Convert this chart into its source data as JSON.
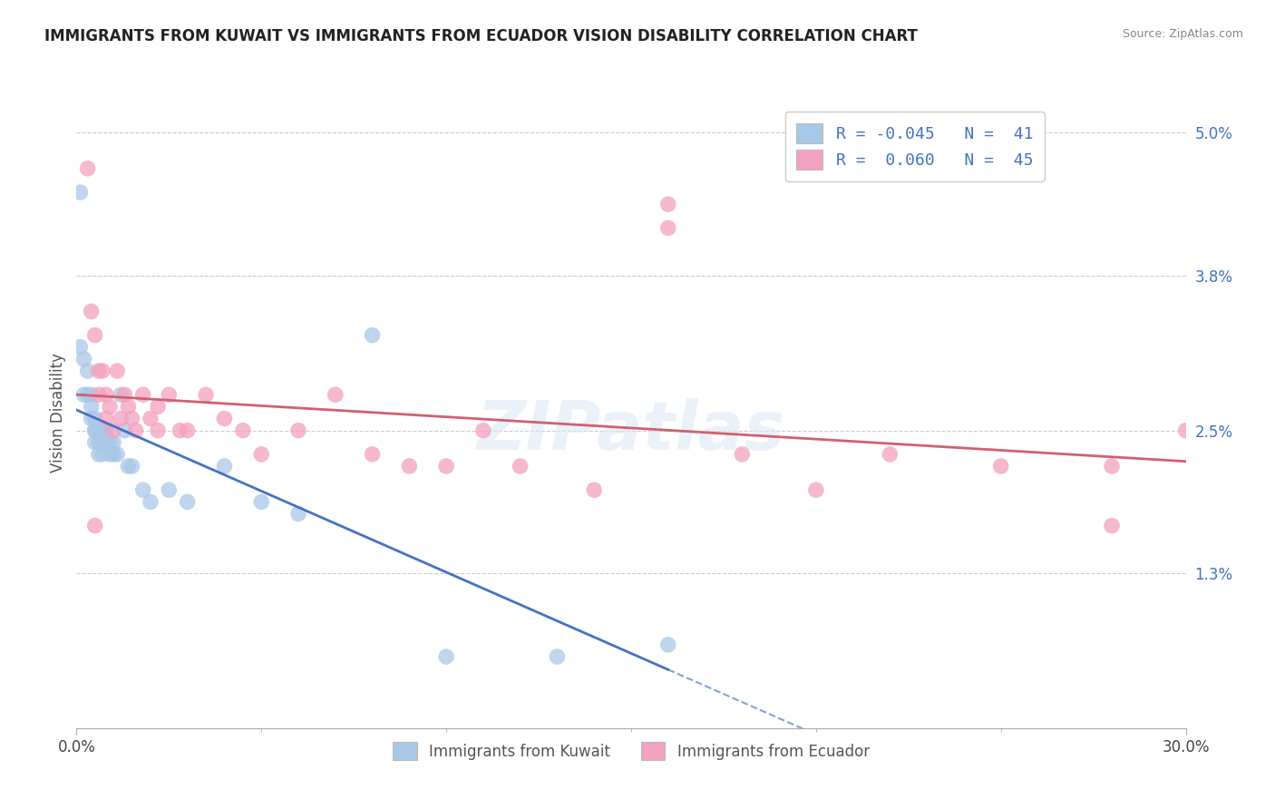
{
  "title": "IMMIGRANTS FROM KUWAIT VS IMMIGRANTS FROM ECUADOR VISION DISABILITY CORRELATION CHART",
  "source": "Source: ZipAtlas.com",
  "ylabel": "Vision Disability",
  "xlim": [
    0.0,
    0.3
  ],
  "ylim": [
    0.0,
    0.053
  ],
  "ytick_values": [
    0.013,
    0.025,
    0.038,
    0.05
  ],
  "ytick_labels": [
    "1.3%",
    "2.5%",
    "3.8%",
    "5.0%"
  ],
  "xtick_values": [
    0.0,
    0.3
  ],
  "xtick_labels": [
    "0.0%",
    "30.0%"
  ],
  "color_kuwait": "#a8c8e8",
  "color_ecuador": "#f4a0c0",
  "color_kuwait_line": "#4472c4",
  "color_ecuador_line": "#d06070",
  "watermark": "ZIPatlas",
  "kuwait_x": [
    0.001,
    0.001,
    0.002,
    0.002,
    0.003,
    0.003,
    0.004,
    0.004,
    0.004,
    0.005,
    0.005,
    0.005,
    0.005,
    0.006,
    0.006,
    0.006,
    0.007,
    0.007,
    0.007,
    0.008,
    0.008,
    0.009,
    0.009,
    0.01,
    0.01,
    0.011,
    0.012,
    0.013,
    0.014,
    0.015,
    0.018,
    0.02,
    0.025,
    0.03,
    0.04,
    0.05,
    0.06,
    0.08,
    0.1,
    0.13,
    0.16
  ],
  "kuwait_y": [
    0.045,
    0.032,
    0.031,
    0.028,
    0.03,
    0.028,
    0.028,
    0.027,
    0.026,
    0.026,
    0.025,
    0.025,
    0.024,
    0.025,
    0.024,
    0.023,
    0.025,
    0.024,
    0.023,
    0.025,
    0.024,
    0.024,
    0.023,
    0.024,
    0.023,
    0.023,
    0.028,
    0.025,
    0.022,
    0.022,
    0.02,
    0.019,
    0.02,
    0.019,
    0.022,
    0.019,
    0.018,
    0.033,
    0.006,
    0.006,
    0.007
  ],
  "ecuador_x": [
    0.003,
    0.004,
    0.005,
    0.006,
    0.006,
    0.007,
    0.008,
    0.008,
    0.009,
    0.01,
    0.011,
    0.012,
    0.013,
    0.014,
    0.015,
    0.016,
    0.018,
    0.02,
    0.022,
    0.022,
    0.025,
    0.028,
    0.03,
    0.035,
    0.04,
    0.045,
    0.05,
    0.06,
    0.07,
    0.08,
    0.09,
    0.1,
    0.11,
    0.12,
    0.14,
    0.16,
    0.18,
    0.2,
    0.22,
    0.25,
    0.28,
    0.3,
    0.005,
    0.16,
    0.28
  ],
  "ecuador_y": [
    0.047,
    0.035,
    0.033,
    0.03,
    0.028,
    0.03,
    0.026,
    0.028,
    0.027,
    0.025,
    0.03,
    0.026,
    0.028,
    0.027,
    0.026,
    0.025,
    0.028,
    0.026,
    0.027,
    0.025,
    0.028,
    0.025,
    0.025,
    0.028,
    0.026,
    0.025,
    0.023,
    0.025,
    0.028,
    0.023,
    0.022,
    0.022,
    0.025,
    0.022,
    0.02,
    0.044,
    0.023,
    0.02,
    0.023,
    0.022,
    0.022,
    0.025,
    0.017,
    0.042,
    0.017
  ]
}
